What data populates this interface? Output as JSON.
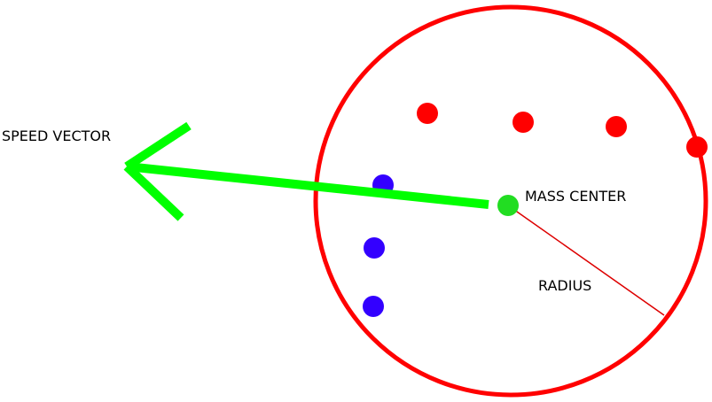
{
  "labels": {
    "speed_vector": "SPEED VECTOR",
    "mass_center": "MASS CENTER",
    "radius": "RADIUS"
  },
  "colors": {
    "circle": "#ff0000",
    "radius_line": "#dd0000",
    "speed_vector": "#00ff00",
    "mass_center": "#22dd22",
    "red_particle": "#ff0000",
    "blue_particle": "#3300ff",
    "text": "#000000"
  },
  "particles": {
    "red_count": 4,
    "blue_count": 3
  }
}
